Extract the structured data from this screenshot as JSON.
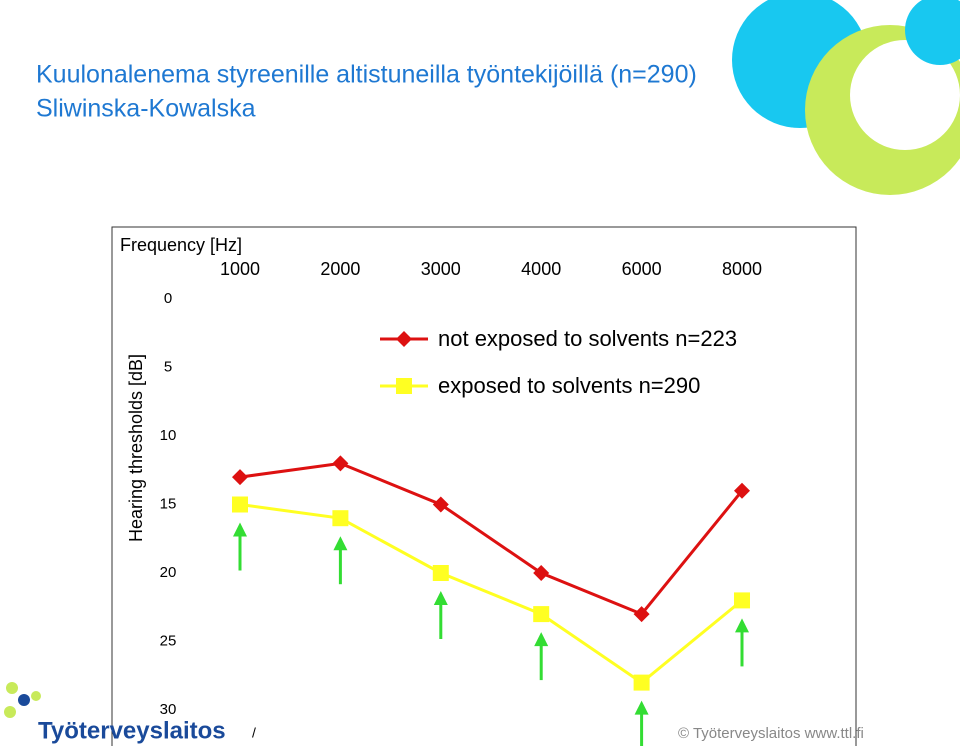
{
  "slide": {
    "title_line1": "Kuulonalenema styreenille altistuneilla työntekijöillä  (n=290)",
    "title_line2": "Sliwinska-Kowalska",
    "logo": "Työterveyslaitos",
    "footer": "© Työterveyslaitos   www.ttl.fi",
    "page_mark": "/"
  },
  "chart_data": {
    "type": "line",
    "x_label": "Frequency [Hz]",
    "y_label": "Hearing thresholds [dB]",
    "categories": [
      "1000",
      "2000",
      "3000",
      "4000",
      "6000",
      "8000"
    ],
    "series": [
      {
        "name": "not exposed to solvents n=223",
        "color": "#dd1111",
        "marker": "diamond",
        "values": [
          13,
          12,
          15,
          20,
          23,
          14
        ]
      },
      {
        "name": "exposed to solvents n=290",
        "color": "#ffff22",
        "marker": "square",
        "values": [
          15,
          16,
          20,
          23,
          28,
          22
        ]
      }
    ],
    "ylim": [
      0,
      30
    ],
    "yticks": [
      0,
      5,
      10,
      15,
      20,
      25,
      30
    ],
    "y_inverted": true,
    "x_axis_position": "top",
    "legend": "upper right",
    "grid": false
  }
}
